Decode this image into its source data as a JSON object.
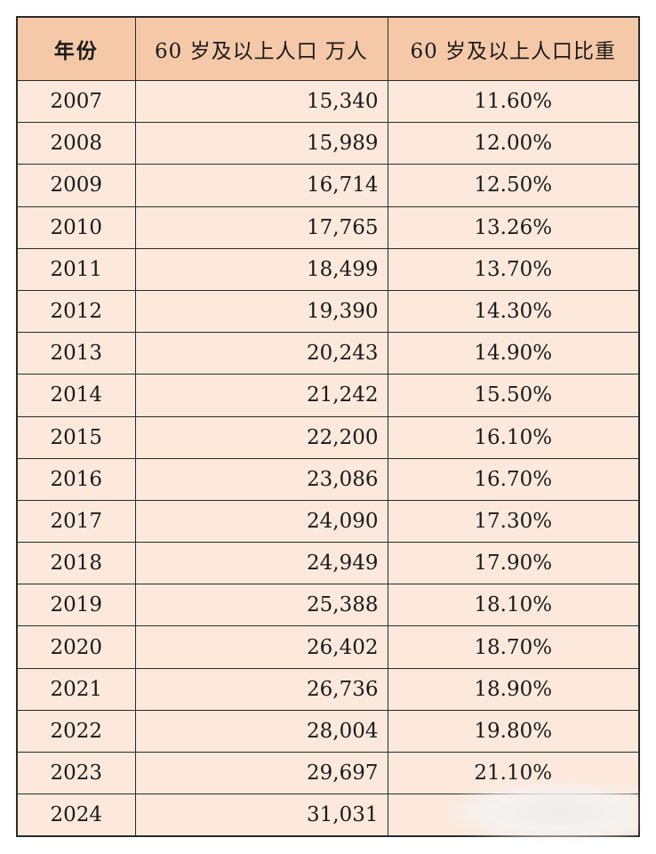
{
  "table": {
    "headers": {
      "year": "年份",
      "population": "60 岁及以上人口 万人",
      "ratio": "60 岁及以上人口比重"
    },
    "rows": [
      {
        "year": "2007",
        "population": "15,340",
        "ratio": "11.60%"
      },
      {
        "year": "2008",
        "population": "15,989",
        "ratio": "12.00%"
      },
      {
        "year": "2009",
        "population": "16,714",
        "ratio": "12.50%"
      },
      {
        "year": "2010",
        "population": "17,765",
        "ratio": "13.26%"
      },
      {
        "year": "2011",
        "population": "18,499",
        "ratio": "13.70%"
      },
      {
        "year": "2012",
        "population": "19,390",
        "ratio": "14.30%"
      },
      {
        "year": "2013",
        "population": "20,243",
        "ratio": "14.90%"
      },
      {
        "year": "2014",
        "population": "21,242",
        "ratio": "15.50%"
      },
      {
        "year": "2015",
        "population": "22,200",
        "ratio": "16.10%"
      },
      {
        "year": "2016",
        "population": "23,086",
        "ratio": "16.70%"
      },
      {
        "year": "2017",
        "population": "24,090",
        "ratio": "17.30%"
      },
      {
        "year": "2018",
        "population": "24,949",
        "ratio": "17.90%"
      },
      {
        "year": "2019",
        "population": "25,388",
        "ratio": "18.10%"
      },
      {
        "year": "2020",
        "population": "26,402",
        "ratio": "18.70%"
      },
      {
        "year": "2021",
        "population": "26,736",
        "ratio": "18.90%"
      },
      {
        "year": "2022",
        "population": "28,004",
        "ratio": "19.80%"
      },
      {
        "year": "2023",
        "population": "29,697",
        "ratio": "21.10%"
      },
      {
        "year": "2024",
        "population": "31,031",
        "ratio": ""
      }
    ]
  },
  "colors": {
    "header_bg": "#f5c9a8",
    "row_bg": "#fce9dc",
    "border": "#2a2a2a"
  }
}
